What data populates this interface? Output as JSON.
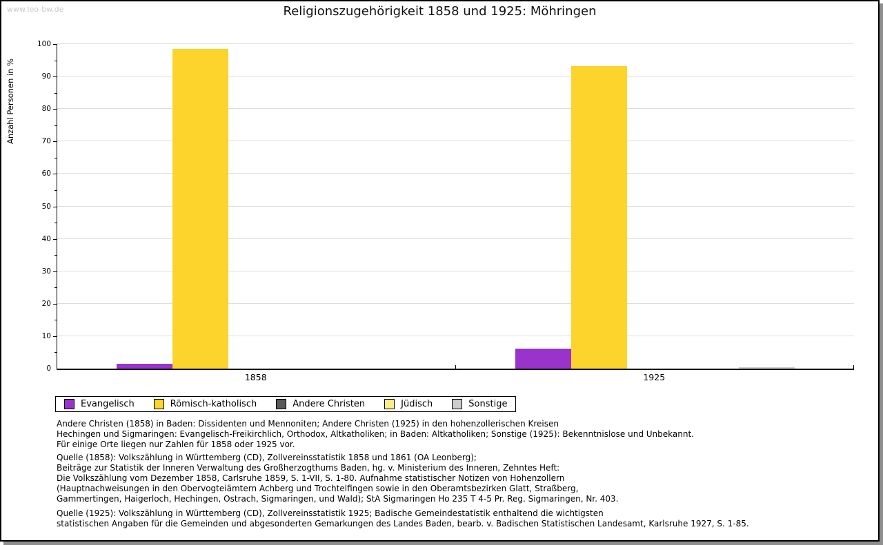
{
  "watermark": "www.leo-bw.de",
  "title": "Religionszugehörigkeit 1858 und 1925: Möhringen",
  "chart_data": {
    "type": "bar",
    "title": "Religionszugehörigkeit 1858 und 1925: Möhringen",
    "xlabel": "",
    "ylabel": "Anzahl Personen in %",
    "ylim": [
      0,
      100
    ],
    "ytick_step": 10,
    "yminor_step": 5,
    "grid": true,
    "legend_position": "bottom-left",
    "categories": [
      "1858",
      "1925"
    ],
    "series": [
      {
        "name": "Evangelisch",
        "color": "#9933CC",
        "values": [
          1.4,
          6.2
        ]
      },
      {
        "name": "Römisch-katholisch",
        "color": "#FCD42B",
        "values": [
          98.6,
          93.3
        ]
      },
      {
        "name": "Andere Christen",
        "color": "#595959",
        "values": [
          0,
          0
        ]
      },
      {
        "name": "Jüdisch",
        "color": "#F9ED87",
        "values": [
          0,
          0
        ]
      },
      {
        "name": "Sonstige",
        "color": "#CDCDCD",
        "values": [
          0,
          0.4
        ]
      }
    ]
  },
  "footnotes": {
    "para1": [
      "Andere Christen (1858) in Baden: Dissidenten und Mennoniten; Andere Christen (1925) in den hohenzollerischen Kreisen",
      "Hechingen und Sigmaringen: Evangelisch-Freikirchlich, Orthodox, Altkatholiken; in Baden: Altkatholiken; Sonstige (1925): Bekenntnislose und Unbekannt.",
      "Für einige Orte liegen nur Zahlen für 1858 oder 1925 vor."
    ],
    "para2": [
      "Quelle (1858): Volkszählung in Württemberg (CD), Zollvereinsstatistik 1858 und 1861 (OA Leonberg);",
      "Beiträge zur Statistik der Inneren Verwaltung des Großherzogthums Baden, hg. v. Ministerium des Inneren, Zehntes Heft:",
      "Die Volkszählung vom Dezember 1858, Carlsruhe 1859, S. 1-VII, S. 1-80. Aufnahme statistischer Notizen von Hohenzollern",
      "(Hauptnachweisungen in den Obervogteiämtern Achberg und Trochtelfingen sowie in den Oberamtsbezirken Glatt, Straßberg,",
      "Gammertingen, Haigerloch, Hechingen, Ostrach, Sigmaringen, und Wald); StA Sigmaringen Ho 235 T 4-5 Pr. Reg. Sigmaringen, Nr. 403."
    ],
    "para3": [
      "Quelle (1925): Volkszählung in Württemberg (CD), Zollvereinsstatistik 1925; Badische Gemeindestatistik enthaltend die wichtigsten",
      "statistischen Angaben für die Gemeinden und abgesonderten Gemarkungen des Landes Baden, bearb. v. Badischen Statistischen Landesamt, Karlsruhe 1927, S. 1-85."
    ]
  }
}
